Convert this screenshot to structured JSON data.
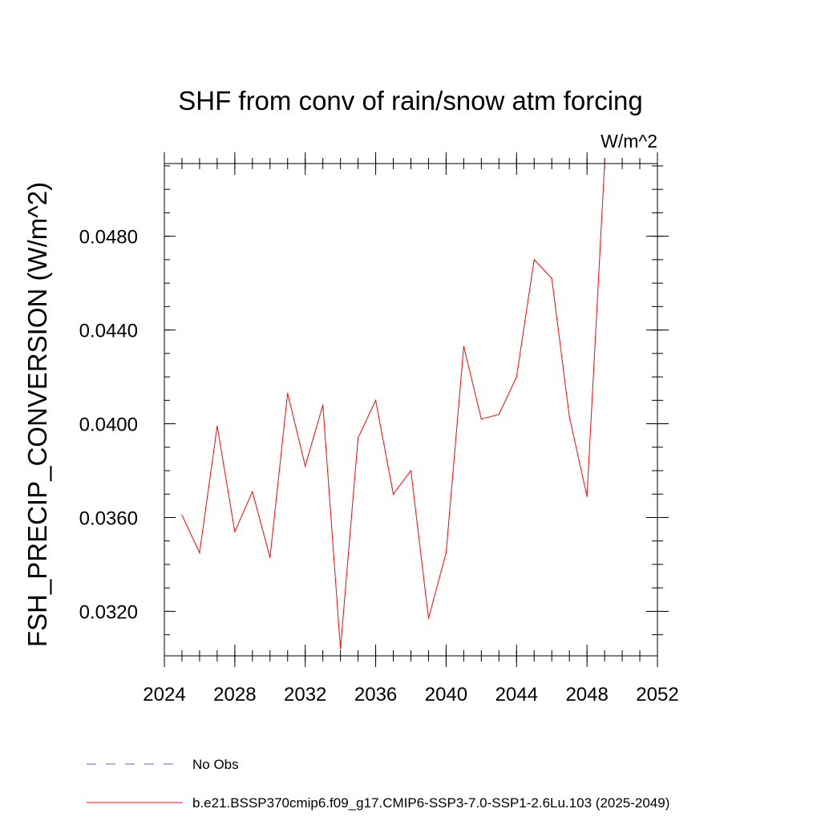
{
  "chart_data": {
    "type": "line",
    "title": "SHF from conv of rain/snow atm forcing",
    "units_label": "W/m^2",
    "xlabel": "",
    "ylabel": "FSH_PRECIP_CONVERSION  (W/m^2)",
    "xlim": [
      2024,
      2052
    ],
    "ylim": [
      0.0301,
      0.0511
    ],
    "x_ticks": [
      2024,
      2028,
      2032,
      2036,
      2040,
      2044,
      2048,
      2052
    ],
    "x_tick_labels": [
      "2024",
      "2028",
      "2032",
      "2036",
      "2040",
      "2044",
      "2048",
      "2052"
    ],
    "x_minor_step": 1,
    "y_ticks": [
      0.032,
      0.036,
      0.04,
      0.044,
      0.048
    ],
    "y_tick_labels": [
      "0.0320",
      "0.0360",
      "0.0400",
      "0.0440",
      "0.0480"
    ],
    "y_minor_step": 0.001,
    "grid": false,
    "legend_position": "bottom",
    "series": [
      {
        "name": "No Obs",
        "color": "#6b5bbf",
        "dashed": true,
        "x": [],
        "y": []
      },
      {
        "name": "b.e21.BSSP370cmip6.f09_g17.CMIP6-SSP3-7.0-SSP1-2.6Lu.103 (2025-2049)",
        "color": "#ff0000",
        "dashed": false,
        "x": [
          2025,
          2026,
          2027,
          2028,
          2029,
          2030,
          2031,
          2032,
          2033,
          2034,
          2035,
          2036,
          2037,
          2038,
          2039,
          2040,
          2041,
          2042,
          2043,
          2044,
          2045,
          2046,
          2047,
          2048,
          2049
        ],
        "y": [
          0.0361,
          0.0345,
          0.0399,
          0.0354,
          0.0371,
          0.0343,
          0.0413,
          0.0382,
          0.0408,
          0.0304,
          0.0394,
          0.041,
          0.037,
          0.038,
          0.0317,
          0.0345,
          0.0433,
          0.0402,
          0.0404,
          0.042,
          0.047,
          0.0462,
          0.0403,
          0.0369,
          0.0511
        ]
      }
    ]
  }
}
